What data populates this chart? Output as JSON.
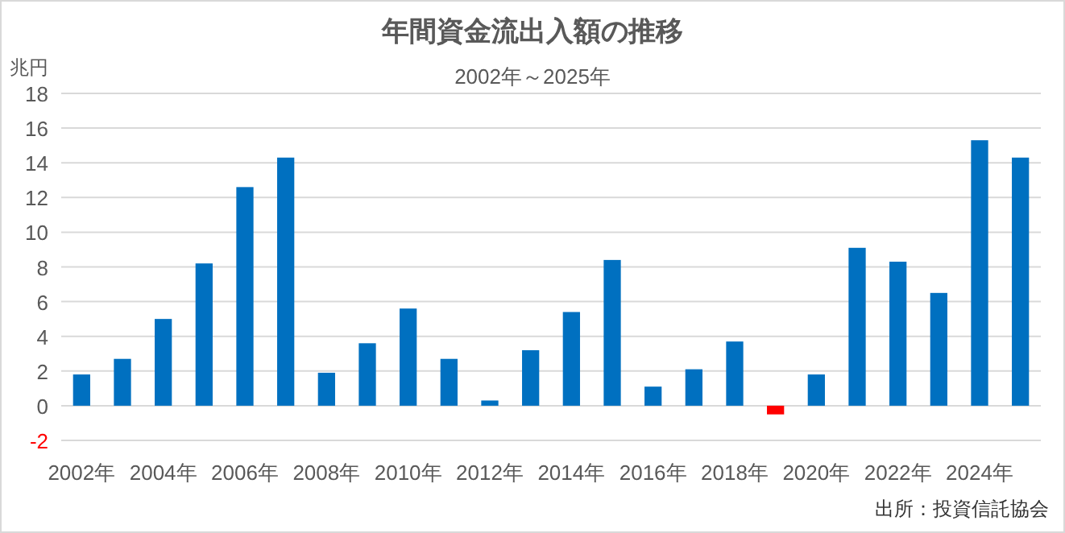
{
  "chart_data": {
    "type": "bar",
    "title": "年間資金流出入額の推移",
    "subtitle": "2002年～2025年",
    "ylabel": "兆円",
    "categories": [
      "2002年",
      null,
      "2004年",
      null,
      "2006年",
      null,
      "2008年",
      null,
      "2010年",
      null,
      "2012年",
      null,
      "2014年",
      null,
      "2016年",
      null,
      "2018年",
      null,
      "2020年",
      null,
      "2022年",
      null,
      "2024年",
      null
    ],
    "values": [
      1.8,
      2.7,
      5.0,
      8.2,
      12.6,
      14.3,
      1.9,
      3.6,
      5.6,
      2.7,
      0.3,
      3.2,
      5.4,
      8.4,
      1.1,
      2.1,
      3.7,
      -0.5,
      1.8,
      9.1,
      8.3,
      6.5,
      15.3,
      14.3
    ],
    "colors": [
      "#0070c0",
      "#0070c0",
      "#0070c0",
      "#0070c0",
      "#0070c0",
      "#0070c0",
      "#0070c0",
      "#0070c0",
      "#0070c0",
      "#0070c0",
      "#0070c0",
      "#0070c0",
      "#0070c0",
      "#0070c0",
      "#0070c0",
      "#0070c0",
      "#0070c0",
      "#ff0000",
      "#0070c0",
      "#0070c0",
      "#0070c0",
      "#0070c0",
      "#0070c0",
      "#0070c0"
    ],
    "ylim": [
      -2,
      18
    ],
    "yticks": [
      -2,
      0,
      2,
      4,
      6,
      8,
      10,
      12,
      14,
      16,
      18
    ],
    "grid": "y",
    "annotations": [
      "出所：投資信託協会"
    ]
  }
}
